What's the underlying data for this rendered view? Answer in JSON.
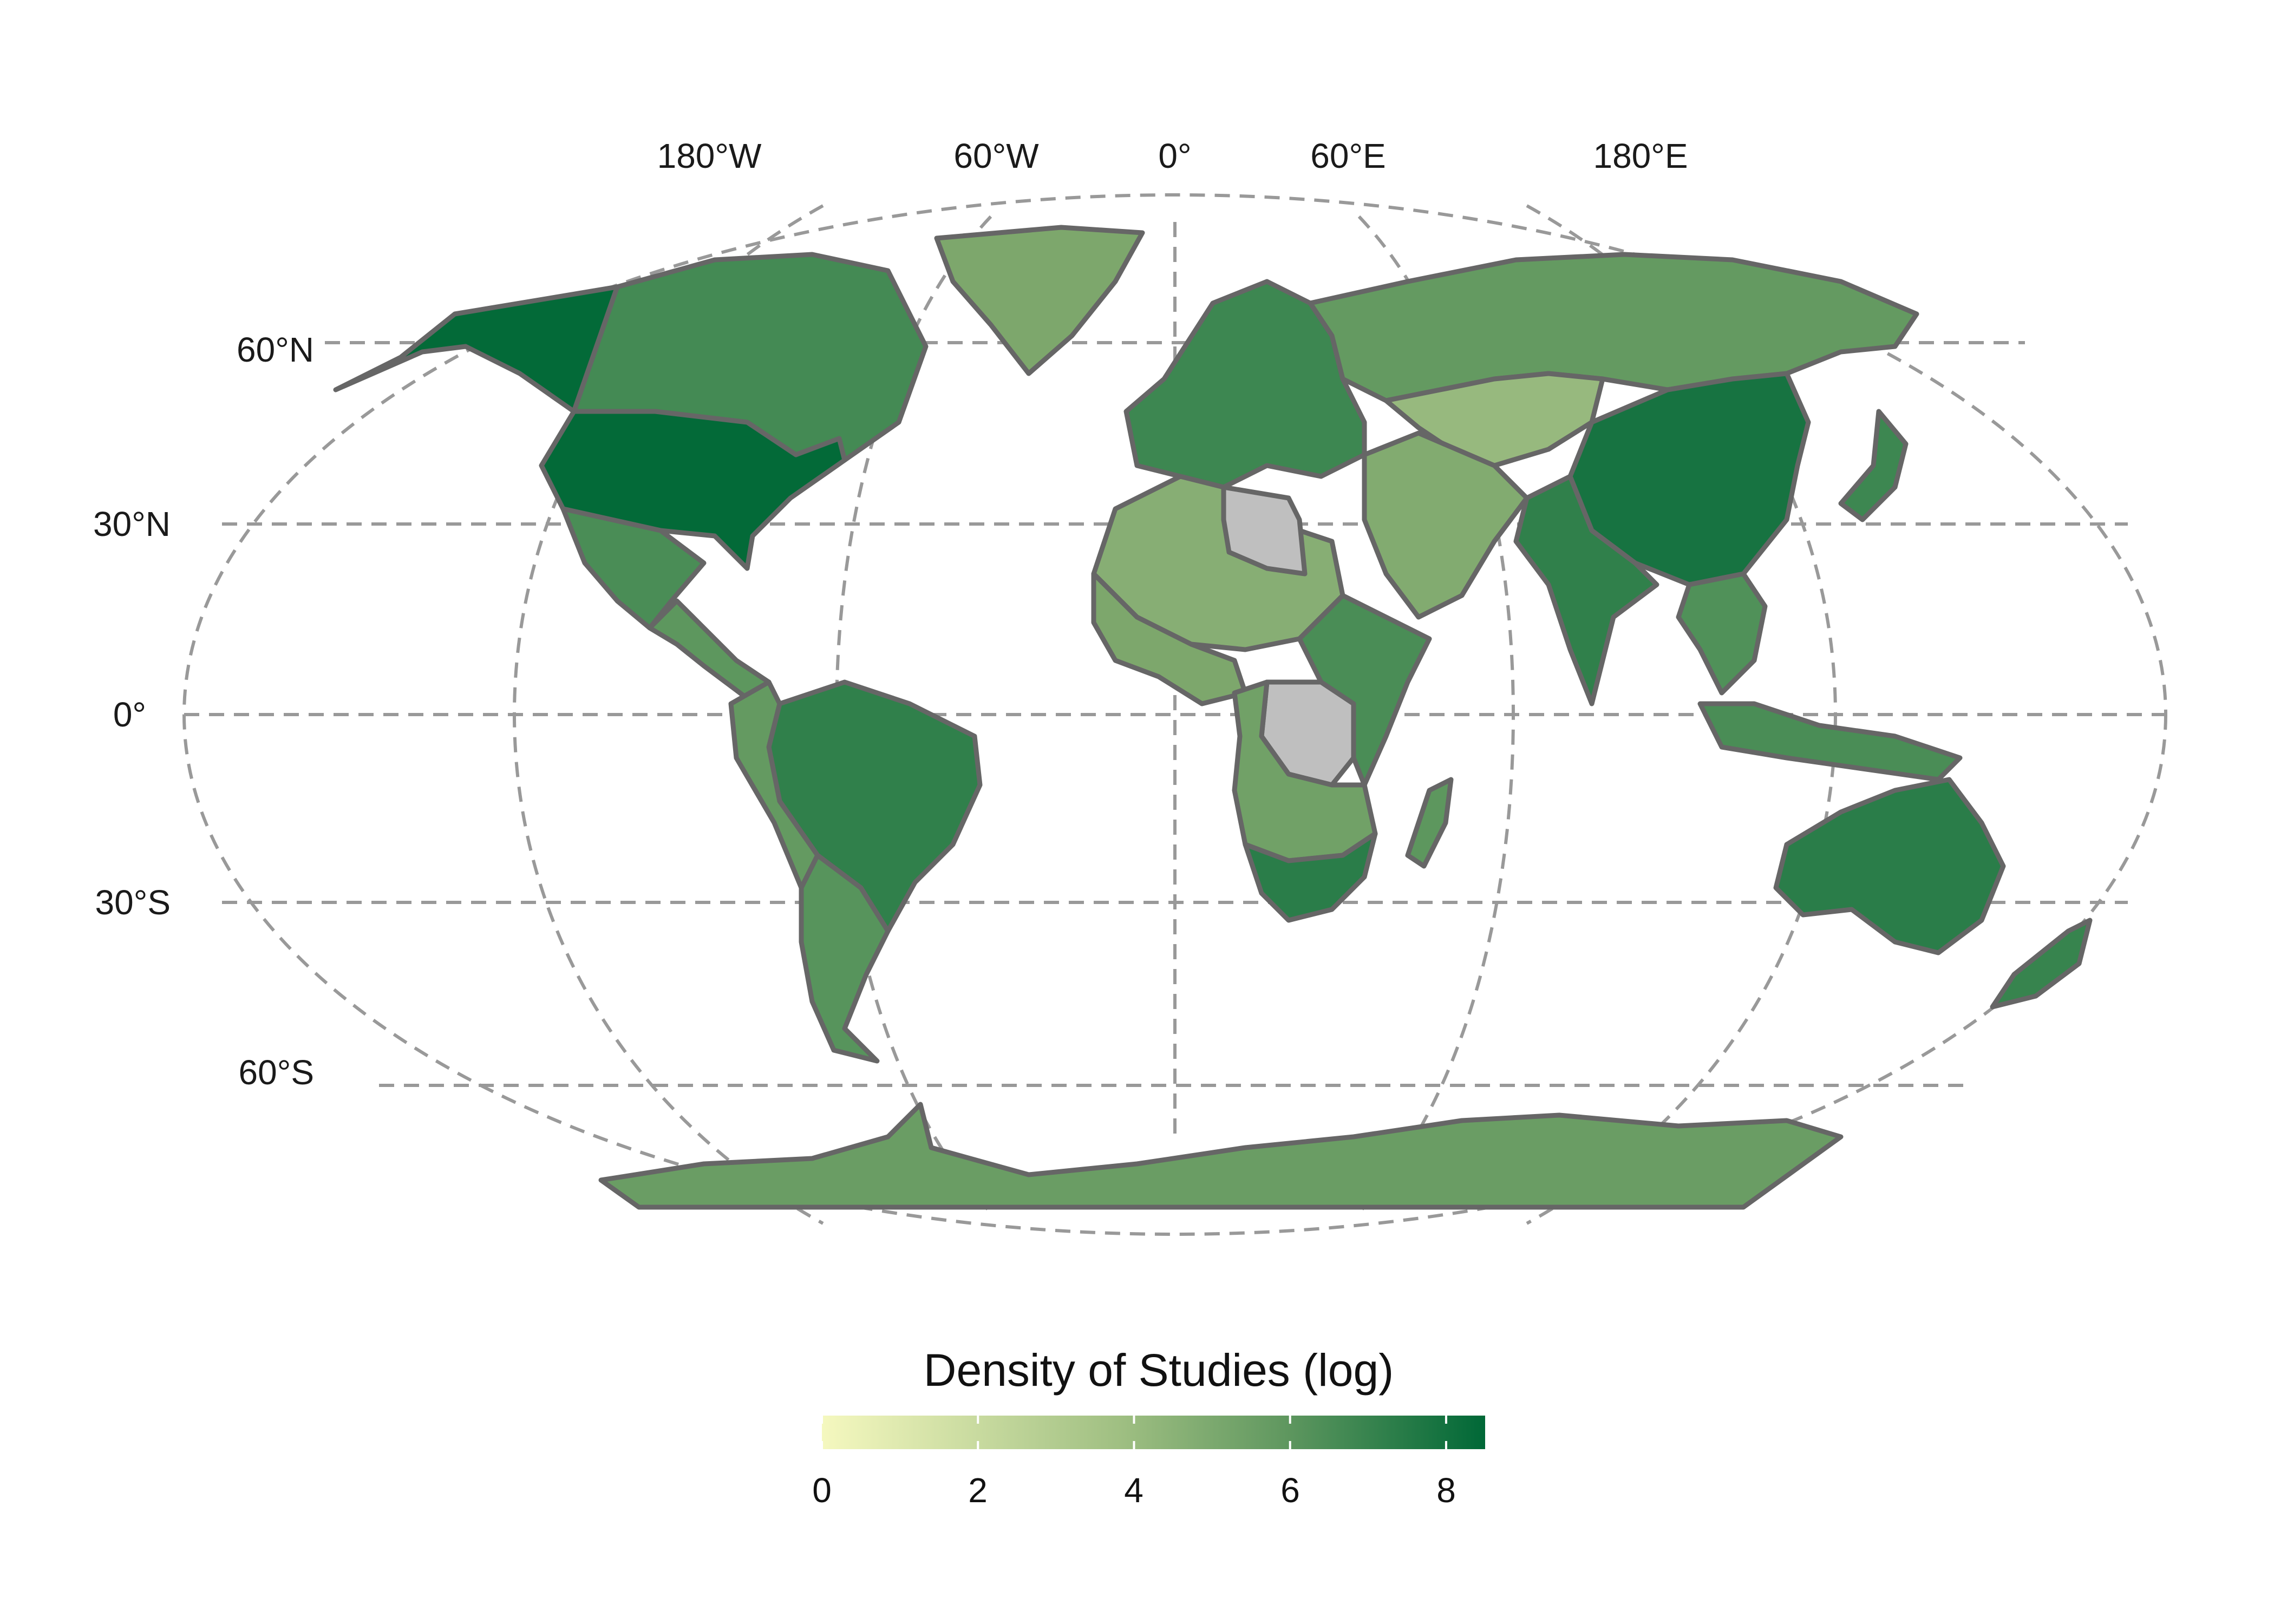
{
  "colors": {
    "scale_low": "#f5f8bf",
    "scale_mid": "#7ba66b",
    "scale_high": "#006837",
    "no_data": "#bfbfbf",
    "border": "#666666",
    "graticule": "#999999"
  },
  "map": {
    "projection": "robinson",
    "graticule_style": "dashed",
    "longitude_labels": [
      "180°W",
      "60°W",
      "0°",
      "60°E",
      "180°E"
    ],
    "latitude_labels": [
      "60°N",
      "30°N",
      "0°",
      "30°S",
      "60°S"
    ],
    "regions": [
      {
        "name": "United States",
        "value": 8.4
      },
      {
        "name": "Alaska",
        "value": 8.4
      },
      {
        "name": "Canada",
        "value": 6.4
      },
      {
        "name": "Greenland",
        "value": 4.6
      },
      {
        "name": "Mexico",
        "value": 6.2
      },
      {
        "name": "Central America",
        "value": 5.6
      },
      {
        "name": "Brazil",
        "value": 7.0
      },
      {
        "name": "Argentina",
        "value": 5.8
      },
      {
        "name": "Western South America",
        "value": 5.4
      },
      {
        "name": "Europe",
        "value": 6.6
      },
      {
        "name": "Russia",
        "value": 5.4
      },
      {
        "name": "Kazakhstan",
        "value": 3.6
      },
      {
        "name": "China",
        "value": 7.8
      },
      {
        "name": "India",
        "value": 7.0
      },
      {
        "name": "Middle East",
        "value": 4.4
      },
      {
        "name": "North Africa",
        "value": 4.2
      },
      {
        "name": "Libya",
        "value": null
      },
      {
        "name": "West Africa",
        "value": 4.6
      },
      {
        "name": "DR Congo",
        "value": null
      },
      {
        "name": "East Africa",
        "value": 6.2
      },
      {
        "name": "Southern Africa",
        "value": 5.0
      },
      {
        "name": "South Africa",
        "value": 7.2
      },
      {
        "name": "Madagascar",
        "value": 5.6
      },
      {
        "name": "Southeast Asia",
        "value": 6.0
      },
      {
        "name": "Indonesia",
        "value": 6.2
      },
      {
        "name": "Japan",
        "value": 6.6
      },
      {
        "name": "Australia",
        "value": 7.2
      },
      {
        "name": "New Zealand",
        "value": 6.8
      },
      {
        "name": "Antarctica",
        "value": 5.2
      }
    ]
  },
  "legend": {
    "title": "Density of Studies (log)",
    "min": 0,
    "max": 8.5,
    "ticks": [
      "0",
      "2",
      "4",
      "6",
      "8"
    ]
  }
}
